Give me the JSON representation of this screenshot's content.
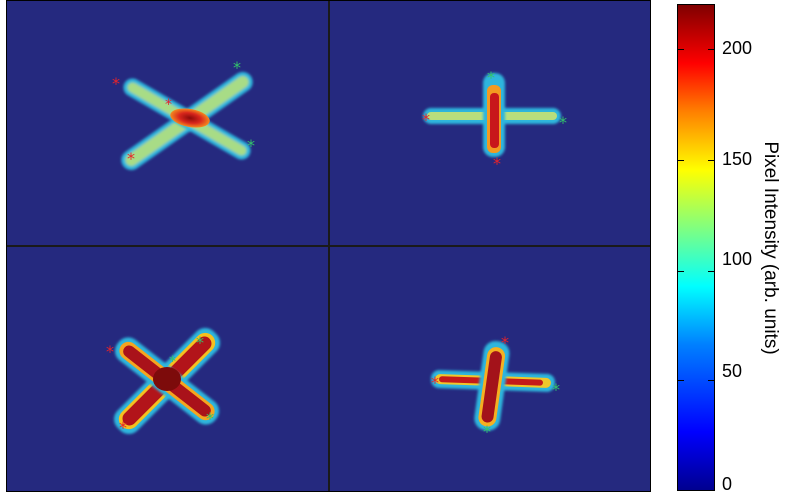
{
  "image": {
    "description_type": "false-color microscope intensity maps",
    "panels": 4,
    "background_color": "#25297f",
    "colormap": "jet"
  },
  "colorbar": {
    "title": "Pixel Intensity (arb. units)",
    "ticks": [
      "200",
      "150",
      "100",
      "50",
      "0"
    ],
    "range": [
      0,
      218
    ]
  },
  "markers": {
    "start_color": "#e8232a",
    "end_color": "#33c46b",
    "symbol": "*"
  }
}
